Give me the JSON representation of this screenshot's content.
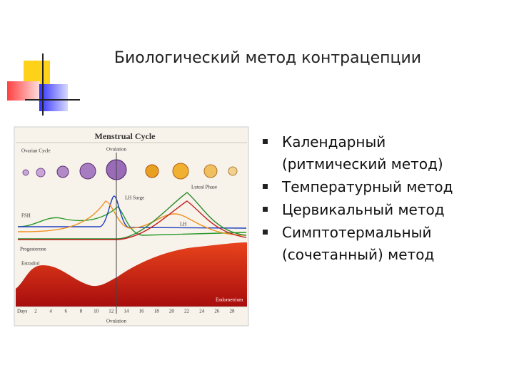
{
  "header": {
    "title": "Биологический метод контрацепции"
  },
  "figure": {
    "title": "Menstrual Cycle",
    "labels": {
      "ovarian_cycle": "Ovarian Cycle",
      "ovulation_top": "Ovulation",
      "lh_surge": "LH Surge",
      "luteal_phase": "Luteal Phase",
      "fsh": "FSH",
      "lh": "LH",
      "progesterone": "Progesterone",
      "estradiol": "Estradiol",
      "endometrium": "Endometrium",
      "days": "Days",
      "ovulation_bottom": "Ovulation"
    },
    "days": [
      2,
      4,
      6,
      8,
      10,
      12,
      14,
      16,
      18,
      20,
      22,
      24,
      26,
      28
    ]
  },
  "bullets": [
    {
      "lines": [
        "Календарный",
        "(ритмический метод)"
      ]
    },
    {
      "lines": [
        "Температурный метод"
      ]
    },
    {
      "lines": [
        "Цервикальный метод"
      ]
    },
    {
      "lines": [
        "Симптотермальный",
        "(сочетанный) метод"
      ]
    }
  ]
}
